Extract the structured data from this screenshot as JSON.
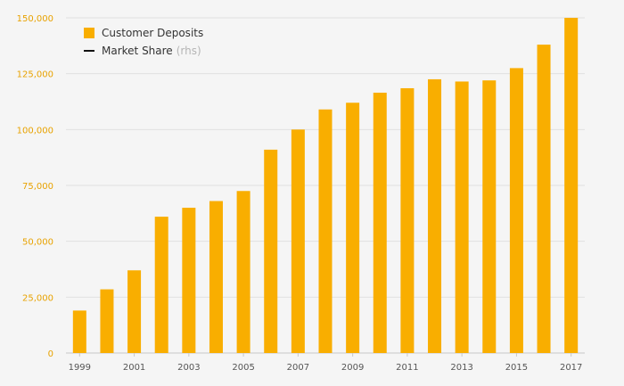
{
  "chart_data": {
    "type": "bar",
    "title": "",
    "xlabel": "",
    "ylabel": "",
    "ylim": [
      0,
      150000
    ],
    "yticks": [
      0,
      25000,
      50000,
      75000,
      100000,
      125000,
      150000
    ],
    "ytick_labels": [
      "0",
      "25,000",
      "50,000",
      "75,000",
      "100,000",
      "125,000",
      "150,000"
    ],
    "categories": [
      "1999",
      "2000",
      "2001",
      "2002",
      "2003",
      "2004",
      "2005",
      "2006",
      "2007",
      "2008",
      "2009",
      "2010",
      "2011",
      "2012",
      "2013",
      "2014",
      "2015",
      "2016",
      "2017"
    ],
    "xtick_labels": [
      "1999",
      "2001",
      "2003",
      "2005",
      "2007",
      "2009",
      "2011",
      "2013",
      "2015",
      "2017"
    ],
    "series": [
      {
        "name": "Customer Deposits",
        "color": "#f9ae00",
        "values": [
          19000,
          28500,
          37000,
          61000,
          65000,
          68000,
          72500,
          91000,
          100000,
          109000,
          112000,
          116500,
          118500,
          122500,
          121500,
          122000,
          127500,
          138000,
          150000
        ]
      }
    ],
    "legend": {
      "position": "top-left",
      "items": [
        {
          "label": "Customer Deposits",
          "suffix": "",
          "swatch": "box",
          "color": "#f9ae00"
        },
        {
          "label": "Market Share",
          "suffix": "(rhs)",
          "swatch": "line",
          "color": "#111111"
        }
      ]
    },
    "grid": true,
    "colors": {
      "tick": "#e8a200",
      "grid": "#e0e0e0",
      "axis": "#c8c8c8"
    }
  }
}
